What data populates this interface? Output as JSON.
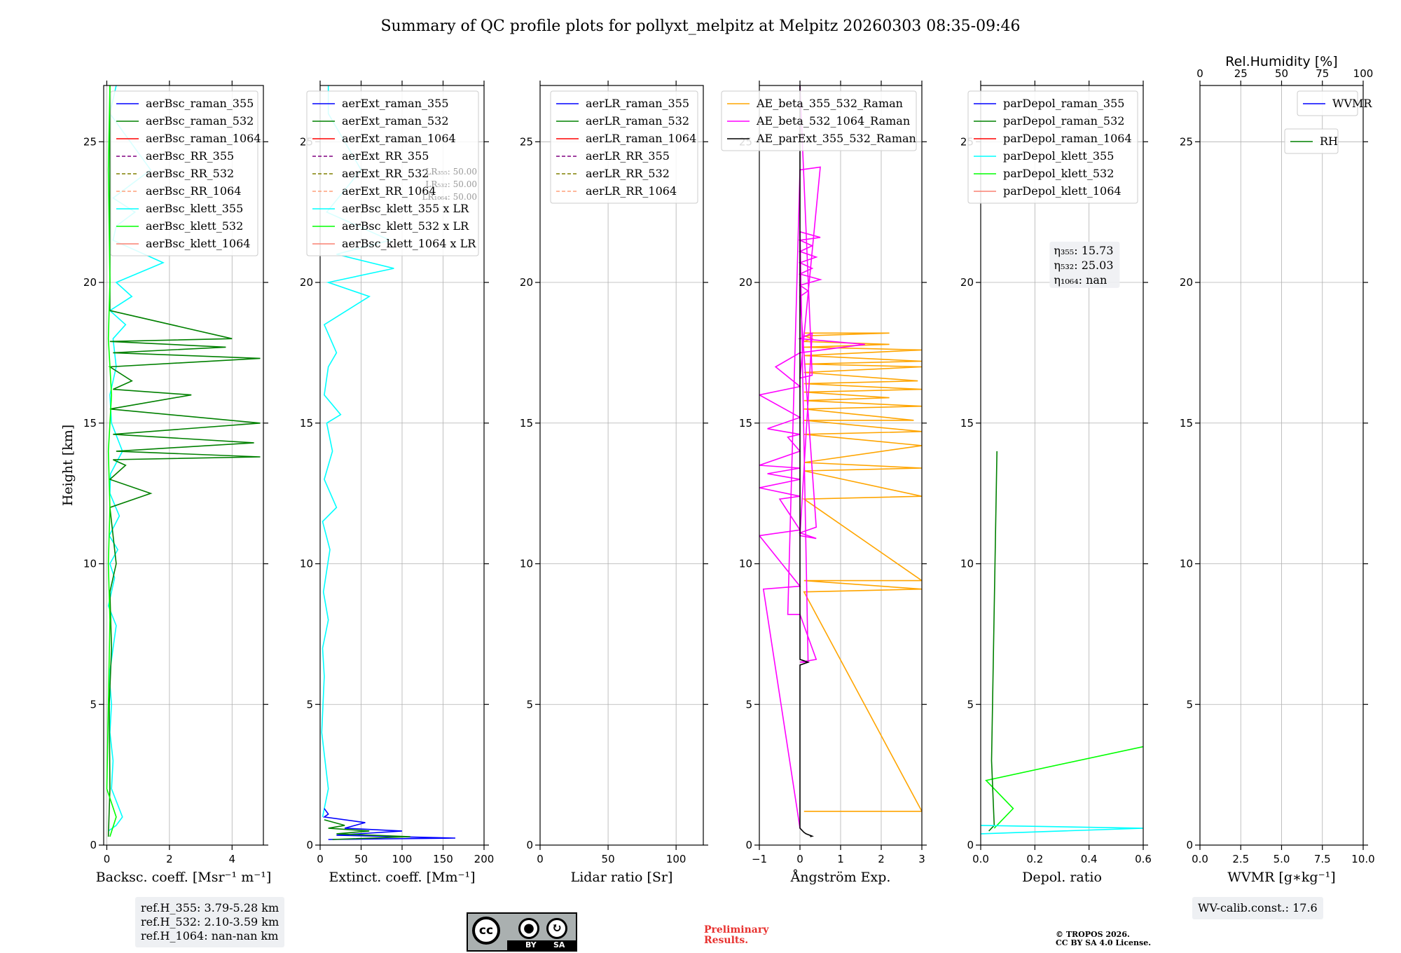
{
  "figure": {
    "title": "Summary of QC profile plots for pollyxt_melpitz at Melpitz 20260303 08:35-09:46",
    "ref_heights": [
      "ref.H_355: 3.79-5.28 km",
      "ref.H_532: 2.10-3.59 km",
      "ref.H_1064: nan-nan km"
    ],
    "wv_calib": "WV-calib.const.: 17.6",
    "license": {
      "cc": "cc",
      "by": "BY",
      "sa": "SA"
    },
    "preliminary": [
      "Preliminary",
      "Results."
    ],
    "copyright": [
      "© TROPOS 2026.",
      "CC BY SA 4.0 License."
    ]
  },
  "chart_data": [
    {
      "type": "line",
      "id": "backscatter",
      "xlabel": "Backsc. coeff. [Msr⁻¹ m⁻¹]",
      "ylabel": "Height [km]",
      "xlim": [
        -0.1,
        5
      ],
      "ylim": [
        0,
        27
      ],
      "xticks": [
        0,
        2,
        4
      ],
      "xticklabels": [
        "0",
        "2",
        "4"
      ],
      "yticks": [
        0,
        5,
        10,
        15,
        20,
        25
      ],
      "yticklabels": [
        "0",
        "5",
        "10",
        "15",
        "20",
        "25"
      ],
      "grid": true,
      "legend_position": "top-right",
      "legend": [
        {
          "label": "aerBsc_raman_355",
          "color": "#0000ff",
          "dash": "solid"
        },
        {
          "label": "aerBsc_raman_532",
          "color": "#008000",
          "dash": "solid"
        },
        {
          "label": "aerBsc_raman_1064",
          "color": "#ff0000",
          "dash": "solid"
        },
        {
          "label": "aerBsc_RR_355",
          "color": "#800080",
          "dash": "dashed"
        },
        {
          "label": "aerBsc_RR_532",
          "color": "#808000",
          "dash": "dashed"
        },
        {
          "label": "aerBsc_RR_1064",
          "color": "#ffa07a",
          "dash": "dashed"
        },
        {
          "label": "aerBsc_klett_355",
          "color": "#00ffff",
          "dash": "solid"
        },
        {
          "label": "aerBsc_klett_532",
          "color": "#00ff00",
          "dash": "solid"
        },
        {
          "label": "aerBsc_klett_1064",
          "color": "#fa8072",
          "dash": "solid"
        }
      ],
      "series": [
        {
          "name": "aerBsc_klett_355",
          "color": "#00ffff",
          "x": [
            0.05,
            0.3,
            0.5,
            0.15,
            0.2,
            0.1,
            0.15,
            0.08,
            0.2,
            0.3,
            0.05,
            0.25,
            0.1,
            0.35,
            0.08,
            0.4,
            0.1,
            0.12,
            0.5,
            0.15,
            0.1,
            0.3,
            0.2,
            0.6,
            0.1,
            0.8,
            0.3,
            1.8,
            0.2,
            0.3,
            0.9,
            0.2,
            1.4,
            0.1,
            0.3
          ],
          "y": [
            0.5,
            0.7,
            1.0,
            2.0,
            3.0,
            4.0,
            5.0,
            6.0,
            7.0,
            7.8,
            8.5,
            9.5,
            10.0,
            10.5,
            11.0,
            11.7,
            12.5,
            13.2,
            14.0,
            15.0,
            16.0,
            17.0,
            18.0,
            18.5,
            19.0,
            19.5,
            20.0,
            20.7,
            21.5,
            22.0,
            22.5,
            23.0,
            24.0,
            26.0,
            27.0
          ]
        },
        {
          "name": "aerBsc_raman_532",
          "color": "#008000",
          "x": [
            0.05,
            0.1,
            0.08,
            0.15,
            0.1,
            0.3,
            0.1,
            1.4,
            0.1,
            0.6,
            0.2,
            4.9,
            0.3,
            4.7,
            0.2,
            4.9,
            0.1,
            2.7,
            0.2,
            0.8,
            0.1,
            4.9,
            0.2,
            3.8,
            0.1,
            4.0,
            0.1,
            0.1
          ],
          "y": [
            0.3,
            2.0,
            5.0,
            7.0,
            9.0,
            10.0,
            12.0,
            12.5,
            13.0,
            13.5,
            13.7,
            13.8,
            14.0,
            14.3,
            14.6,
            15.0,
            15.5,
            16.0,
            16.2,
            16.5,
            17.0,
            17.3,
            17.5,
            17.7,
            17.9,
            18.0,
            19.0,
            27.0
          ]
        },
        {
          "name": "aerBsc_klett_532",
          "color": "#00ff00",
          "x": [
            0.1,
            0.3,
            0.0,
            0.05,
            0.1,
            0.05,
            0.1,
            0.05,
            0.15,
            0.05,
            0.1,
            0.05,
            0.1
          ],
          "y": [
            0.3,
            1.0,
            2.0,
            5.0,
            8.0,
            10.0,
            12.0,
            14.0,
            16.0,
            18.0,
            20.0,
            24.0,
            27.0
          ]
        }
      ]
    },
    {
      "type": "line",
      "id": "extinction",
      "xlabel": "Extinct. coeff. [Mm⁻¹]",
      "xlim": [
        0,
        200
      ],
      "ylim": [
        0,
        27
      ],
      "xticks": [
        0,
        50,
        100,
        150,
        200
      ],
      "xticklabels": [
        "0",
        "50",
        "100",
        "150",
        "200"
      ],
      "yticks": [
        0,
        5,
        10,
        15,
        20,
        25
      ],
      "yticklabels": [
        "0",
        "5",
        "10",
        "15",
        "20",
        "25"
      ],
      "grid": true,
      "legend_position": "top-right",
      "lr_annotation": [
        "LR₃₅₅: 50.00",
        "LR₅₃₂: 50.00",
        "LR₁₀₆₄: 50.00"
      ],
      "legend": [
        {
          "label": "aerExt_raman_355",
          "color": "#0000ff",
          "dash": "solid"
        },
        {
          "label": "aerExt_raman_532",
          "color": "#008000",
          "dash": "solid"
        },
        {
          "label": "aerExt_raman_1064",
          "color": "#ff0000",
          "dash": "solid"
        },
        {
          "label": "aerExt_RR_355",
          "color": "#800080",
          "dash": "dashed"
        },
        {
          "label": "aerExt_RR_532",
          "color": "#808000",
          "dash": "dashed"
        },
        {
          "label": "aerExt_RR_1064",
          "color": "#ffa07a",
          "dash": "dashed"
        },
        {
          "label": "aerBsc_klett_355 x LR",
          "color": "#00ffff",
          "dash": "solid"
        },
        {
          "label": "aerBsc_klett_532 x LR",
          "color": "#00ff00",
          "dash": "solid"
        },
        {
          "label": "aerBsc_klett_1064 x LR",
          "color": "#fa8072",
          "dash": "solid"
        }
      ],
      "series": [
        {
          "name": "aerBsc_klett_355 x LR",
          "color": "#00ffff",
          "x": [
            3,
            10,
            2,
            5,
            3,
            10,
            4,
            12,
            3,
            20,
            5,
            15,
            8,
            25,
            5,
            10,
            20,
            5,
            60,
            10,
            90,
            20,
            85,
            8,
            50,
            10,
            10
          ],
          "y": [
            1.0,
            2.0,
            4.0,
            6.0,
            7.0,
            8.0,
            9.0,
            10.5,
            11.5,
            12.0,
            13.0,
            14.0,
            15.0,
            15.3,
            16.0,
            17.0,
            17.5,
            18.5,
            19.5,
            20.0,
            20.5,
            21.0,
            21.5,
            22.5,
            24.0,
            26.0,
            27.0
          ]
        },
        {
          "name": "aerExt_raman_355",
          "color": "#0000ff",
          "x": [
            10,
            165,
            20,
            100,
            30,
            55,
            5,
            10,
            5
          ],
          "y": [
            0.2,
            0.25,
            0.35,
            0.5,
            0.6,
            0.8,
            1.0,
            1.1,
            1.3
          ]
        },
        {
          "name": "aerExt_raman_532",
          "color": "#008000",
          "x": [
            15,
            110,
            20,
            60,
            10,
            30,
            5
          ],
          "y": [
            0.2,
            0.3,
            0.4,
            0.5,
            0.6,
            0.7,
            0.9
          ]
        }
      ]
    },
    {
      "type": "line",
      "id": "lidar_ratio",
      "xlabel": "Lidar ratio [Sr]",
      "xlim": [
        0,
        120
      ],
      "ylim": [
        0,
        27
      ],
      "xticks": [
        0,
        50,
        100
      ],
      "xticklabels": [
        "0",
        "50",
        "100"
      ],
      "yticks": [
        0,
        5,
        10,
        15,
        20,
        25
      ],
      "yticklabels": [
        "0",
        "5",
        "10",
        "15",
        "20",
        "25"
      ],
      "grid": true,
      "legend_position": "top-right",
      "legend": [
        {
          "label": "aerLR_raman_355",
          "color": "#0000ff",
          "dash": "solid"
        },
        {
          "label": "aerLR_raman_532",
          "color": "#008000",
          "dash": "solid"
        },
        {
          "label": "aerLR_raman_1064",
          "color": "#ff0000",
          "dash": "solid"
        },
        {
          "label": "aerLR_RR_355",
          "color": "#800080",
          "dash": "dashed"
        },
        {
          "label": "aerLR_RR_532",
          "color": "#808000",
          "dash": "dashed"
        },
        {
          "label": "aerLR_RR_1064",
          "color": "#ffa07a",
          "dash": "dashed"
        }
      ],
      "series": []
    },
    {
      "type": "line",
      "id": "angstrom",
      "xlabel": "Ångström Exp.",
      "xlim": [
        -1,
        3
      ],
      "ylim": [
        0,
        27
      ],
      "xticks": [
        -1,
        0,
        1,
        2,
        3
      ],
      "xticklabels": [
        "−1",
        "0",
        "1",
        "2",
        "3"
      ],
      "yticks": [
        0,
        5,
        10,
        15,
        20,
        25
      ],
      "yticklabels": [
        "0",
        "5",
        "10",
        "15",
        "20",
        "25"
      ],
      "grid": true,
      "legend_position": "top-right",
      "legend": [
        {
          "label": "AE_beta_355_532_Raman",
          "color": "#ffa500",
          "dash": "solid"
        },
        {
          "label": "AE_beta_532_1064_Raman",
          "color": "#ff00ff",
          "dash": "solid"
        },
        {
          "label": "AE_parExt_355_532_Raman",
          "color": "#000000",
          "dash": "solid"
        }
      ],
      "series": [
        {
          "name": "AE_beta_355_532_Raman",
          "color": "#ffa500",
          "x": [
            0.1,
            3.0,
            0.1,
            3.0,
            0.1,
            3.0,
            0.1,
            3.0,
            0.1,
            3.0,
            0.1,
            3.0,
            0.1,
            3.0,
            0.1,
            2.8,
            0.1,
            3.0,
            0.1,
            2.2,
            0.1,
            3.0,
            0.1,
            2.9,
            0.1,
            3.0,
            0.1,
            3.0,
            0.1,
            3.0,
            0.1,
            2.2,
            0.1,
            0.3,
            0.1,
            2.2,
            0.1
          ],
          "y": [
            1.2,
            1.2,
            9.0,
            9.1,
            9.4,
            9.4,
            12.3,
            12.4,
            13.3,
            13.4,
            13.6,
            14.2,
            14.6,
            14.7,
            15.1,
            15.1,
            15.5,
            15.6,
            15.8,
            15.9,
            16.1,
            16.2,
            16.4,
            16.5,
            16.8,
            17.0,
            17.1,
            17.2,
            17.4,
            17.6,
            17.7,
            17.8,
            17.9,
            18.0,
            18.1,
            18.2,
            18.2
          ]
        },
        {
          "name": "AE_beta_532_1064_Raman",
          "color": "#ff00ff",
          "x": [
            0,
            -0.9,
            0,
            -1,
            0,
            -0.5,
            0,
            -1,
            0,
            -0.8,
            0,
            -1,
            0,
            -0.3,
            0,
            -0.8,
            0,
            -1,
            0,
            -0.6,
            0,
            1.6,
            0,
            0.3,
            0,
            0.4,
            0,
            0.4,
            0,
            0.2,
            0,
            0.5,
            0,
            0.3,
            0,
            0.4,
            0,
            0.3,
            0,
            0.5,
            0,
            0.2,
            0,
            0.4,
            0,
            -0.3,
            0,
            0.5,
            0,
            0.3,
            0
          ],
          "y": [
            0.6,
            9.1,
            9.2,
            11.0,
            11.2,
            12.3,
            12.4,
            12.7,
            13.0,
            13.2,
            13.4,
            13.5,
            14.0,
            14.5,
            14.6,
            14.8,
            15.2,
            16.0,
            16.3,
            17.0,
            17.5,
            17.8,
            18.0,
            18.2,
            11.0,
            10.9,
            11.1,
            11.3,
            19.5,
            19.7,
            19.9,
            20.1,
            20.3,
            20.5,
            20.7,
            20.9,
            21.1,
            21.3,
            21.5,
            21.6,
            21.8,
            6.5,
            6.5,
            6.6,
            8.2,
            8.2,
            24.0,
            24.1,
            16.6,
            16.7,
            27
          ]
        },
        {
          "name": "AE_parExt_355_532_Raman",
          "color": "#000000",
          "x": [
            0.25,
            0.3,
            0.15,
            0.1,
            0.0,
            0.0,
            0.0,
            0.2,
            0.0,
            0.0
          ],
          "y": [
            0.3,
            0.32,
            0.4,
            0.45,
            0.6,
            1.0,
            6.4,
            6.5,
            6.6,
            27
          ]
        }
      ]
    },
    {
      "type": "line",
      "id": "depol",
      "xlabel": "Depol. ratio",
      "xlim": [
        0,
        0.6
      ],
      "ylim": [
        0,
        27
      ],
      "xticks": [
        0,
        0.2,
        0.4,
        0.6
      ],
      "xticklabels": [
        "0.0",
        "0.2",
        "0.4",
        "0.6"
      ],
      "yticks": [
        0,
        5,
        10,
        15,
        20,
        25
      ],
      "yticklabels": [
        "0",
        "5",
        "10",
        "15",
        "20",
        "25"
      ],
      "grid": true,
      "legend_position": "top-right",
      "eta_annotation": [
        "η₃₅₅: 15.73",
        "η₅₃₂: 25.03",
        "η₁₀₆₄: nan"
      ],
      "legend": [
        {
          "label": "parDepol_raman_355",
          "color": "#0000ff",
          "dash": "solid"
        },
        {
          "label": "parDepol_raman_532",
          "color": "#008000",
          "dash": "solid"
        },
        {
          "label": "parDepol_raman_1064",
          "color": "#ff0000",
          "dash": "solid"
        },
        {
          "label": "parDepol_klett_355",
          "color": "#00ffff",
          "dash": "solid"
        },
        {
          "label": "parDepol_klett_532",
          "color": "#00ff00",
          "dash": "solid"
        },
        {
          "label": "parDepol_klett_1064",
          "color": "#fa8072",
          "dash": "solid"
        }
      ],
      "series": [
        {
          "name": "parDepol_klett_532",
          "color": "#00ff00",
          "x": [
            0.05,
            0.12,
            0.02,
            0.6
          ],
          "y": [
            0.6,
            1.3,
            2.3,
            3.5
          ]
        },
        {
          "name": "parDepol_raman_532",
          "color": "#008000",
          "x": [
            0.03,
            0.05,
            0.04,
            0.06
          ],
          "y": [
            0.5,
            0.7,
            3.0,
            14.0
          ]
        },
        {
          "name": "parDepol_klett_355",
          "color": "#00ffff",
          "x": [
            0.0,
            0.6,
            0.0
          ],
          "y": [
            0.4,
            0.6,
            0.7
          ]
        }
      ]
    },
    {
      "type": "line",
      "id": "wvmr",
      "xlabel": "WVMR [g∗kg⁻¹]",
      "x2label": "Rel.Humidity [%]",
      "xlim": [
        0,
        10
      ],
      "x2lim": [
        0,
        100
      ],
      "ylim": [
        0,
        27
      ],
      "xticks": [
        0,
        2.5,
        5,
        7.5,
        10
      ],
      "xticklabels": [
        "0.0",
        "2.5",
        "5.0",
        "7.5",
        "10.0"
      ],
      "x2ticks": [
        0,
        25,
        50,
        75,
        100
      ],
      "x2ticklabels": [
        "0",
        "25",
        "50",
        "75",
        "100"
      ],
      "yticks": [
        0,
        5,
        10,
        15,
        20,
        25
      ],
      "yticklabels": [
        "0",
        "5",
        "10",
        "15",
        "20",
        "25"
      ],
      "grid": true,
      "legend_position": "top-right",
      "legend": [
        {
          "label": "WVMR",
          "color": "#0000ff",
          "dash": "solid"
        }
      ],
      "legend2": [
        {
          "label": "RH",
          "color": "#008000",
          "dash": "solid"
        }
      ],
      "series": []
    }
  ]
}
